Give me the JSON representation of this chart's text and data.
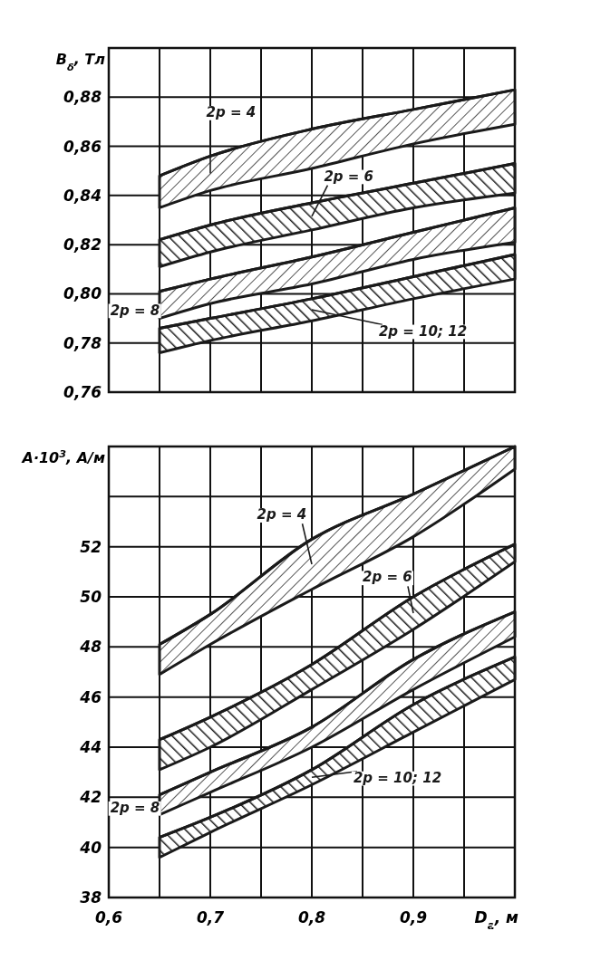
{
  "chart_data": [
    {
      "type": "line",
      "ylabel": "B$_{δ}$, Тл",
      "x": [
        0.65,
        0.7,
        0.8,
        0.9,
        1.0
      ],
      "xlim": [
        0.6,
        1.0
      ],
      "xticks": [
        {
          "value": 0.6,
          "label": null
        },
        {
          "value": 0.65,
          "label": null
        },
        {
          "value": 0.7,
          "label": null
        },
        {
          "value": 0.75,
          "label": null
        },
        {
          "value": 0.8,
          "label": null
        },
        {
          "value": 0.85,
          "label": null
        },
        {
          "value": 0.9,
          "label": null
        },
        {
          "value": 0.95,
          "label": null
        },
        {
          "value": 1.0,
          "label": null
        }
      ],
      "ylim": [
        0.76,
        0.9
      ],
      "yticks": [
        {
          "value": 0.76,
          "label": "0,76"
        },
        {
          "value": 0.78,
          "label": "0,78"
        },
        {
          "value": 0.8,
          "label": "0,80"
        },
        {
          "value": 0.82,
          "label": "0,82"
        },
        {
          "value": 0.84,
          "label": "0,84"
        },
        {
          "value": 0.86,
          "label": "0,86"
        },
        {
          "value": 0.88,
          "label": "0,88"
        },
        {
          "value": 0.9,
          "label": null
        }
      ],
      "grid": true,
      "tick_labels": "y",
      "series": [
        {
          "name": "2p = 4",
          "color": "#1a1a1a",
          "values": [
            0.848,
            0.856,
            0.867,
            0.875,
            0.883
          ],
          "lower": [
            0.835,
            0.842,
            0.851,
            0.861,
            0.869
          ],
          "upper": [
            0.848,
            0.856,
            0.867,
            0.875,
            0.883
          ]
        },
        {
          "name": "2p = 6",
          "color": "#1a1a1a",
          "values": [
            0.822,
            0.828,
            0.837,
            0.845,
            0.853
          ],
          "lower": [
            0.811,
            0.817,
            0.826,
            0.835,
            0.841
          ],
          "upper": [
            0.822,
            0.828,
            0.837,
            0.845,
            0.853
          ]
        },
        {
          "name": "2p = 8",
          "color": "#1a1a1a",
          "values": [
            0.801,
            0.806,
            0.815,
            0.825,
            0.835
          ],
          "lower": [
            0.79,
            0.796,
            0.804,
            0.814,
            0.821
          ],
          "upper": [
            0.801,
            0.806,
            0.815,
            0.825,
            0.835
          ]
        },
        {
          "name": "2p = 10; 12",
          "color": "#1a1a1a",
          "values": [
            0.786,
            0.79,
            0.798,
            0.807,
            0.816
          ],
          "lower": [
            0.776,
            0.781,
            0.789,
            0.798,
            0.806
          ],
          "upper": [
            0.786,
            0.79,
            0.798,
            0.807,
            0.816
          ]
        }
      ]
    },
    {
      "type": "line",
      "xlabel": "D$_{a}$, м",
      "ylabel": "A·10$^{3}$, А/м",
      "x": [
        0.65,
        0.7,
        0.8,
        0.9,
        1.0
      ],
      "xlim": [
        0.6,
        1.0
      ],
      "xticks": [
        {
          "value": 0.6,
          "label": "0,6"
        },
        {
          "value": 0.65,
          "label": null
        },
        {
          "value": 0.7,
          "label": "0,7"
        },
        {
          "value": 0.75,
          "label": null
        },
        {
          "value": 0.8,
          "label": "0,8"
        },
        {
          "value": 0.85,
          "label": null
        },
        {
          "value": 0.9,
          "label": "0,9"
        },
        {
          "value": 0.95,
          "label": null
        },
        {
          "value": 1.0,
          "label": null
        }
      ],
      "ylim": [
        38,
        56
      ],
      "yticks": [
        38,
        40,
        42,
        44,
        46,
        48,
        50,
        52,
        {
          "value": 54,
          "label": null
        },
        {
          "value": 56,
          "label": null
        }
      ],
      "grid": true,
      "series": [
        {
          "name": "2p = 4",
          "color": "#1a1a1a",
          "values": [
            48.1,
            49.3,
            52.3,
            54.1,
            56
          ],
          "lower": [
            46.9,
            48.1,
            50.3,
            52.4,
            55.1
          ],
          "upper": [
            48.1,
            49.3,
            52.3,
            54.1,
            56
          ]
        },
        {
          "name": "2p = 6",
          "color": "#1a1a1a",
          "values": [
            44.3,
            45.2,
            47.3,
            50,
            52.1
          ],
          "lower": [
            43.1,
            44,
            46.3,
            48.7,
            51.4
          ],
          "upper": [
            44.3,
            45.2,
            47.3,
            50,
            52.1
          ]
        },
        {
          "name": "2p = 8",
          "color": "#1a1a1a",
          "values": [
            42.1,
            43,
            44.8,
            47.5,
            49.4
          ],
          "lower": [
            41.3,
            42.2,
            44,
            46.3,
            48.4
          ],
          "upper": [
            42.1,
            43,
            44.8,
            47.5,
            49.4
          ]
        },
        {
          "name": "2p = 10; 12",
          "color": "#1a1a1a",
          "values": [
            40.4,
            41.2,
            43.1,
            45.7,
            47.6
          ],
          "lower": [
            39.6,
            40.6,
            42.5,
            44.6,
            46.7
          ],
          "upper": [
            40.4,
            41.2,
            43.1,
            45.7,
            47.6
          ]
        }
      ]
    }
  ]
}
